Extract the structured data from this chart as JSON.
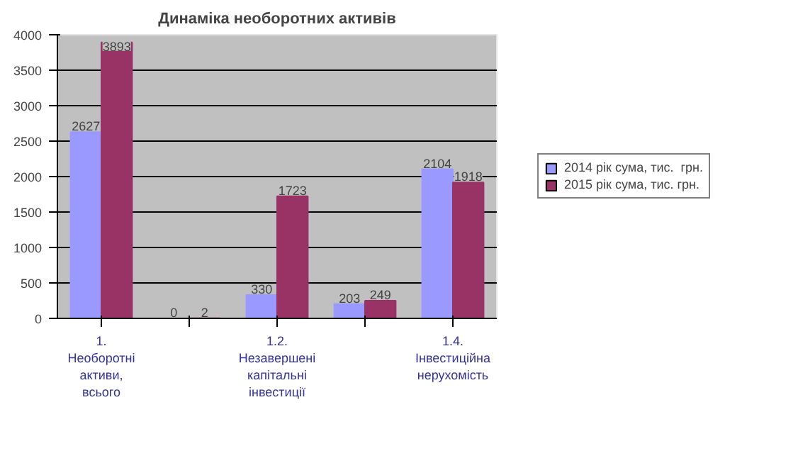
{
  "chart_data": {
    "type": "bar",
    "title": "Динаміка необоротних активів",
    "categories": [
      "1. Необоротні активи, всього",
      null,
      "1.2. Незавершені капітальні інвестиції",
      null,
      "1.4. Інвестиційна нерухомість"
    ],
    "series": [
      {
        "name": "2014 рік сума, тис.  грн.",
        "color": "#9999ff",
        "values": [
          2627,
          0,
          330,
          203,
          2104
        ]
      },
      {
        "name": "2015 рік сума, тис. грн.",
        "color": "#993366",
        "values": [
          3893,
          2,
          1723,
          249,
          1918
        ]
      }
    ],
    "ylim": [
      0,
      4000
    ],
    "yticks": [
      0,
      500,
      1000,
      1500,
      2000,
      2500,
      3000,
      3500,
      4000
    ],
    "grid": "y",
    "legend": "right",
    "data_labels": true
  }
}
